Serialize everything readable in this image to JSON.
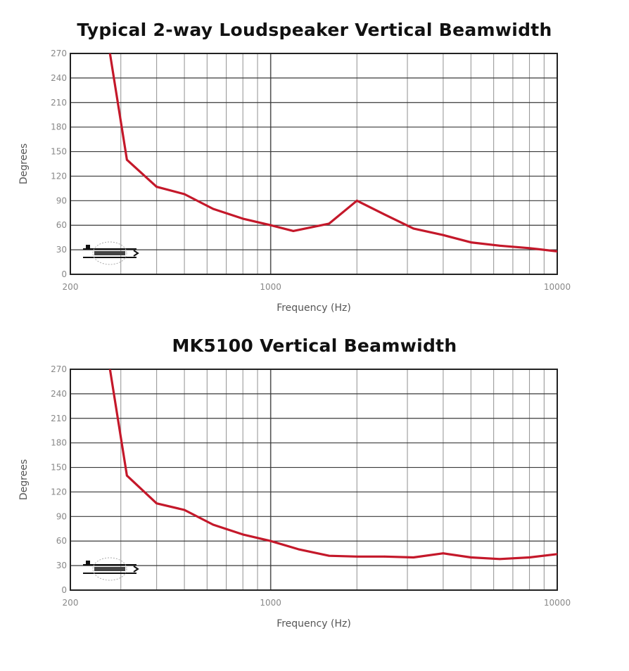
{
  "chart_data": [
    {
      "type": "line",
      "title": "Typical 2-way Loudspeaker Vertical Beamwidth",
      "xlabel": "Frequency (Hz)",
      "ylabel": "Degrees",
      "xscale": "log",
      "xlim": [
        200,
        10000
      ],
      "ylim": [
        0,
        270
      ],
      "xticks": [
        "200",
        "1000",
        "10000"
      ],
      "yticks": [
        "270",
        "240",
        "210",
        "180",
        "150",
        "120",
        "90",
        "60",
        "30",
        "0"
      ],
      "grid": true,
      "series_color": "#c4182a",
      "x": [
        275,
        315,
        400,
        500,
        630,
        800,
        1000,
        1200,
        1600,
        2000,
        2500,
        3150,
        4000,
        5000,
        6300,
        8000,
        10000
      ],
      "y": [
        270,
        140,
        107,
        98,
        80,
        68,
        60,
        53,
        62,
        90,
        73,
        56,
        48,
        39,
        35,
        32,
        28
      ]
    },
    {
      "type": "line",
      "title": "MK5100 Vertical Beamwidth",
      "xlabel": "Frequency (Hz)",
      "ylabel": "Degrees",
      "xscale": "log",
      "xlim": [
        200,
        10000
      ],
      "ylim": [
        0,
        270
      ],
      "xticks": [
        "200",
        "1000",
        "10000"
      ],
      "yticks": [
        "270",
        "240",
        "210",
        "180",
        "150",
        "120",
        "90",
        "60",
        "30",
        "0"
      ],
      "grid": true,
      "series_color": "#c4182a",
      "x": [
        275,
        315,
        400,
        500,
        630,
        800,
        1000,
        1250,
        1600,
        2000,
        2500,
        3150,
        4000,
        5000,
        6300,
        8000,
        10000
      ],
      "y": [
        270,
        140,
        106,
        98,
        80,
        68,
        60,
        50,
        42,
        41,
        41,
        40,
        45,
        40,
        38,
        40,
        44
      ]
    }
  ]
}
